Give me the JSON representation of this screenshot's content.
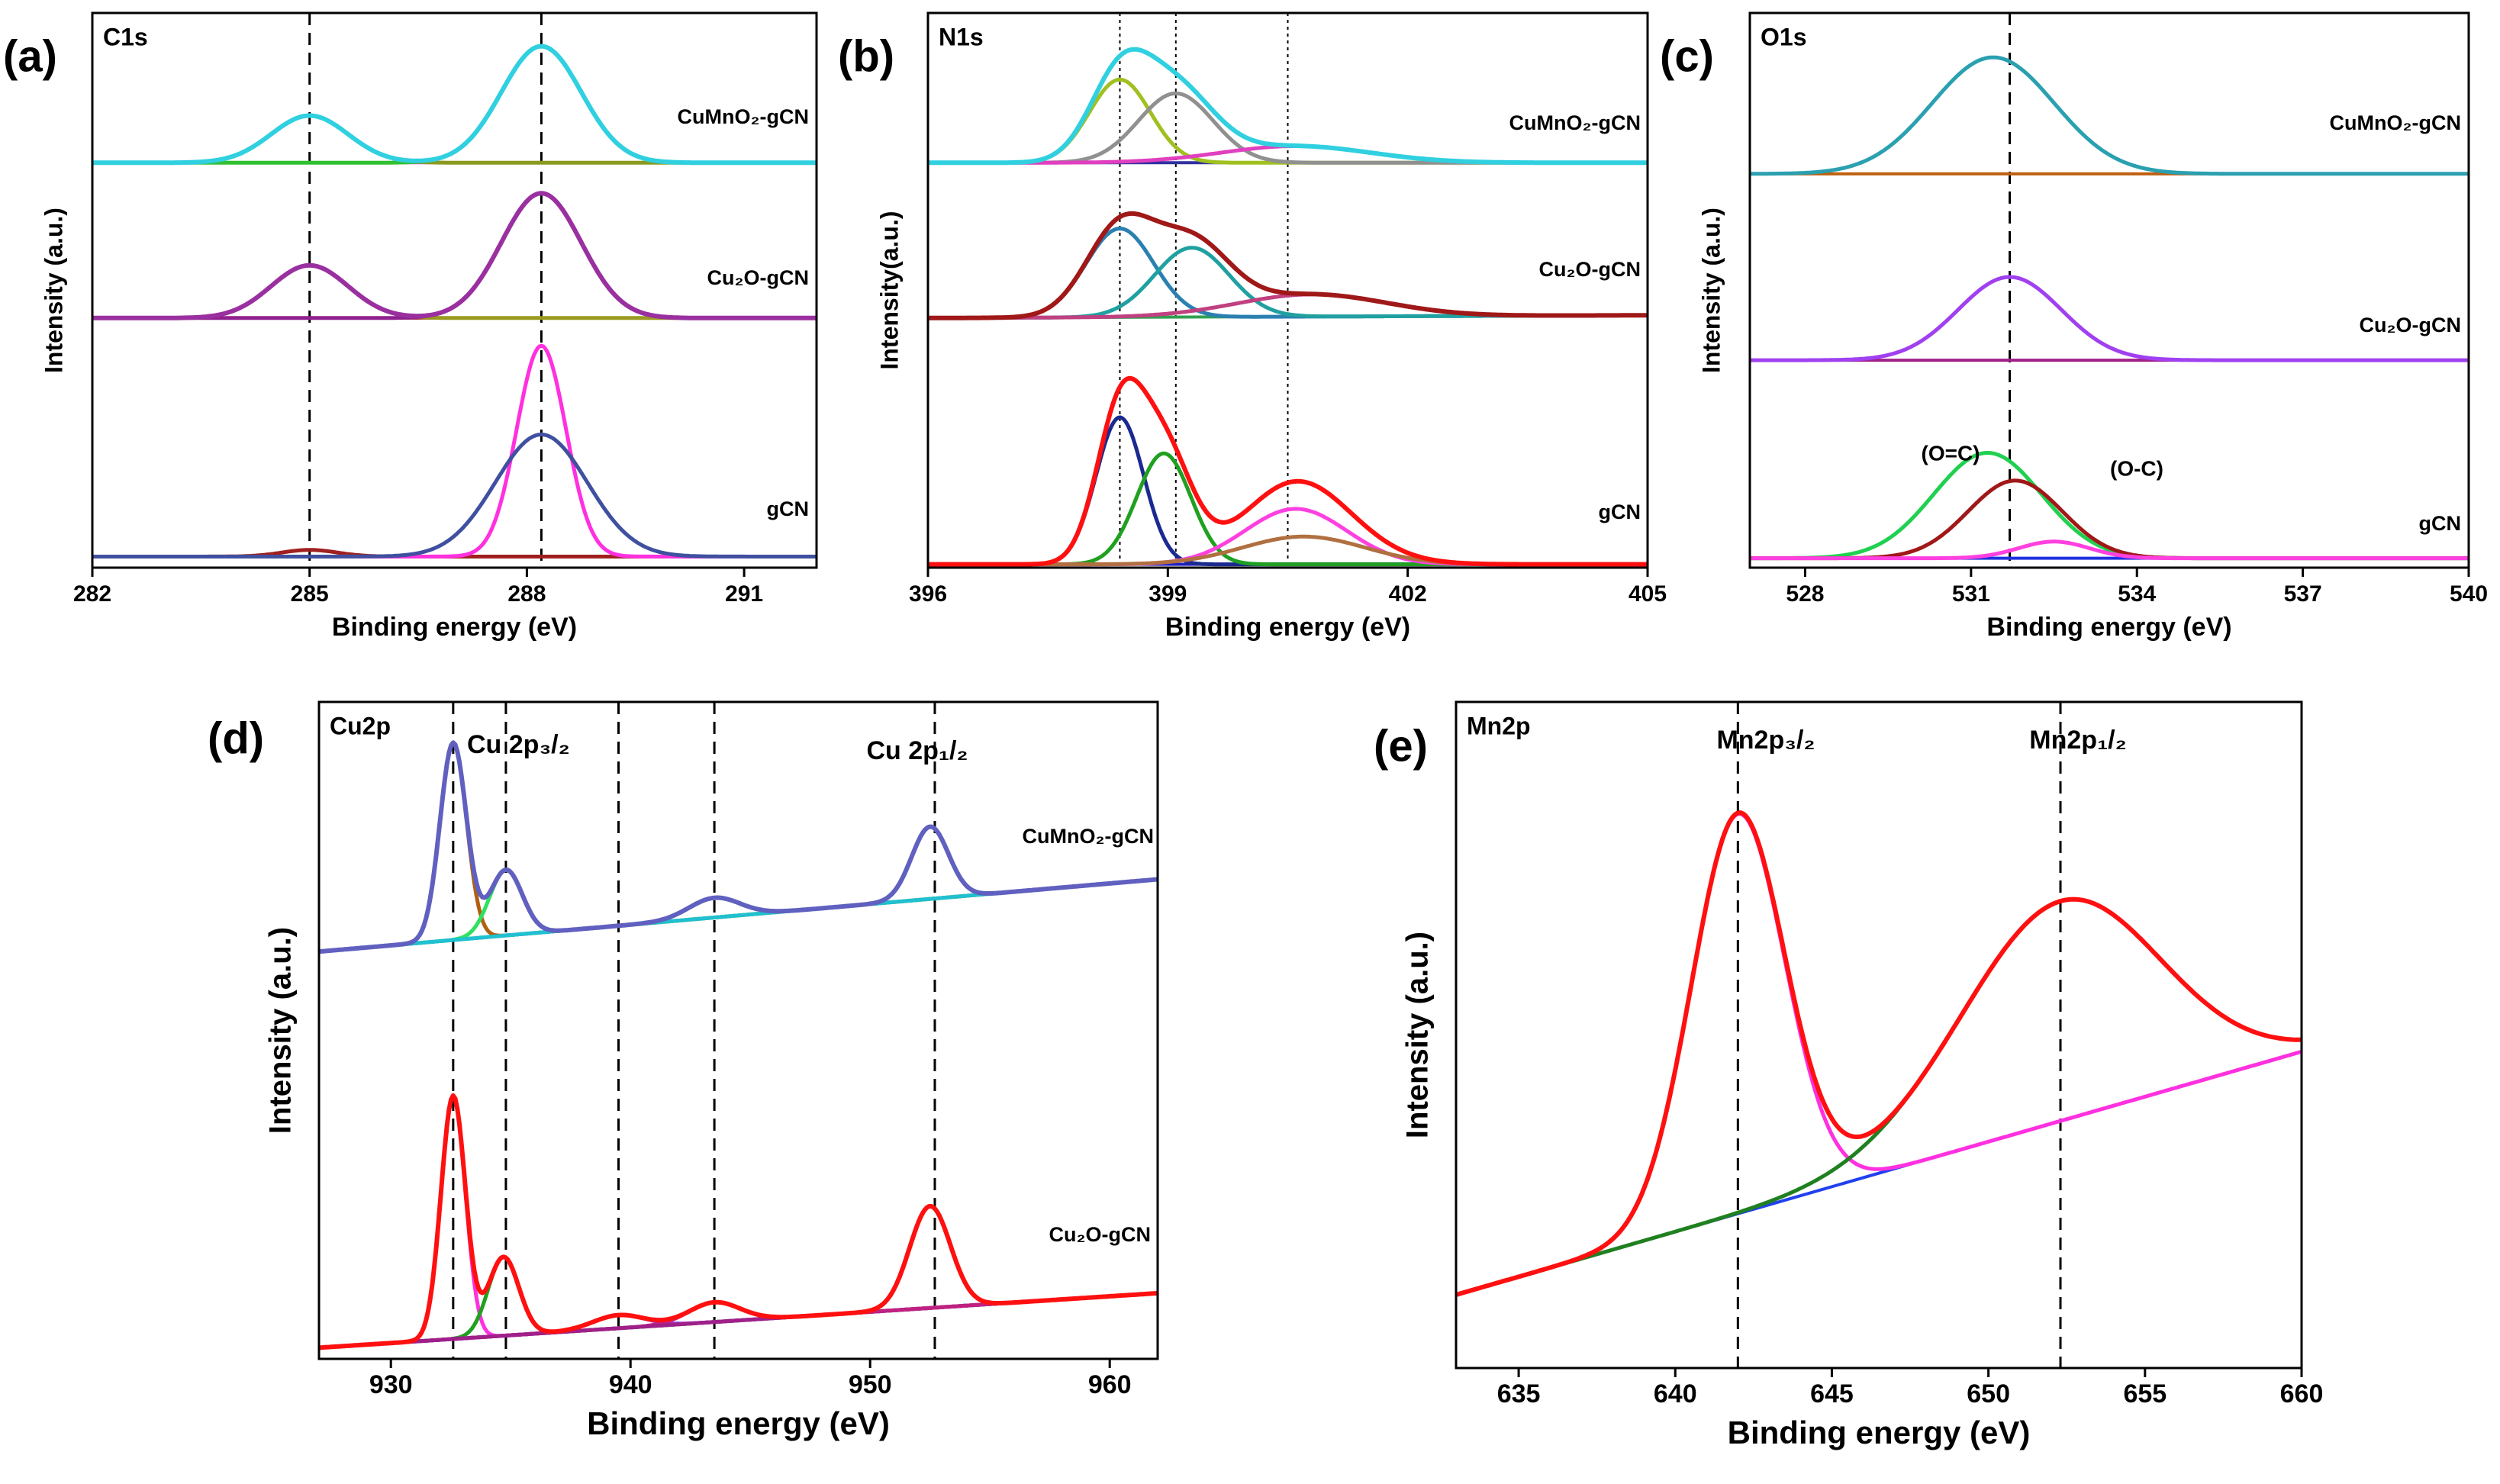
{
  "chart_data": [
    {
      "type": "xps",
      "panel": "(a)",
      "title": "C1s",
      "xlabel": "Binding energy (eV)",
      "ylabel": "Intensity (a.u.)",
      "xlim": [
        282,
        292
      ],
      "xticks": [
        282,
        285,
        288,
        291
      ],
      "ylim": [
        0,
        1
      ],
      "marker_style": "dashed",
      "markers": [
        285.0,
        288.2
      ],
      "stacks": [
        {
          "label": "CuMnO₂-gCN",
          "baseline": [
            0.73,
            0.73
          ],
          "baseline_color": "#e040c0",
          "envelope_color": "#30d0e0",
          "peaks": [
            {
              "center": 285.0,
              "fwhm": 1.25,
              "height": 0.085,
              "color": "#8a9a20"
            },
            {
              "center": 288.2,
              "fwhm": 1.3,
              "height": 0.21,
              "color": "#30c030"
            }
          ]
        },
        {
          "label": "Cu₂O-gCN",
          "baseline": [
            0.45,
            0.45
          ],
          "baseline_color": "#a01020",
          "envelope_color": "#9a30a0",
          "peaks": [
            {
              "center": 285.0,
              "fwhm": 1.25,
              "height": 0.095,
              "color": "#9a9a20"
            },
            {
              "center": 288.2,
              "fwhm": 1.3,
              "height": 0.225,
              "color": "#902090"
            }
          ]
        },
        {
          "label": "gCN",
          "baseline": [
            0.02,
            0.02
          ],
          "baseline_color": "#208020",
          "peaks": [
            {
              "center": 285.0,
              "fwhm": 0.9,
              "height": 0.012,
              "color": "#a02020"
            },
            {
              "center": 288.2,
              "fwhm": 0.8,
              "height": 0.38,
              "color": "#ff30e0"
            },
            {
              "center": 288.2,
              "fwhm": 1.5,
              "height": 0.22,
              "color": "#4050a0"
            }
          ]
        }
      ]
    },
    {
      "type": "xps",
      "panel": "(b)",
      "title": "N1s",
      "xlabel": "Binding energy (eV)",
      "ylabel": "Intensity(a.u.)",
      "xlim": [
        396,
        405
      ],
      "xticks": [
        396,
        399,
        402,
        405
      ],
      "ylim": [
        0,
        1
      ],
      "marker_style": "dotted",
      "markers": [
        398.4,
        399.1,
        400.5
      ],
      "stacks": [
        {
          "label": "CuMnO₂-gCN",
          "baseline": [
            0.73,
            0.73
          ],
          "baseline_color": "#3030a0",
          "envelope_color": "#30d0e0",
          "peaks": [
            {
              "center": 398.4,
              "fwhm": 0.9,
              "height": 0.15,
              "color": "#a0c020"
            },
            {
              "center": 399.1,
              "fwhm": 1.1,
              "height": 0.125,
              "color": "#909090"
            },
            {
              "center": 400.6,
              "fwhm": 2.2,
              "height": 0.03,
              "color": "#e040c0"
            }
          ]
        },
        {
          "label": "Cu₂O-gCN",
          "baseline": [
            0.45,
            0.455
          ],
          "baseline_color": "#30a050",
          "envelope_color": "#a01818",
          "peaks": [
            {
              "center": 398.4,
              "fwhm": 1.0,
              "height": 0.16,
              "color": "#2a80b0"
            },
            {
              "center": 399.3,
              "fwhm": 1.1,
              "height": 0.125,
              "color": "#20a0a0"
            },
            {
              "center": 400.8,
              "fwhm": 2.2,
              "height": 0.04,
              "color": "#c04080"
            }
          ]
        },
        {
          "label": "gCN",
          "baseline": [
            0.006,
            0.006
          ],
          "baseline_color": "#2020c0",
          "envelope_color": "#ff1010",
          "peaks": [
            {
              "center": 398.4,
              "fwhm": 0.7,
              "height": 0.265,
              "color": "#1a2a90"
            },
            {
              "center": 398.95,
              "fwhm": 0.8,
              "height": 0.2,
              "color": "#20a020"
            },
            {
              "center": 400.6,
              "fwhm": 1.5,
              "height": 0.1,
              "color": "#ff40e0"
            },
            {
              "center": 400.7,
              "fwhm": 1.8,
              "height": 0.05,
              "color": "#b07040"
            }
          ]
        }
      ]
    },
    {
      "type": "xps",
      "panel": "(c)",
      "title": "O1s",
      "xlabel": "Binding energy (eV)",
      "ylabel": "Intensity (a.u.)",
      "xlim": [
        527,
        540
      ],
      "xticks": [
        528,
        531,
        534,
        537,
        540
      ],
      "ylim": [
        0,
        1
      ],
      "marker_style": "dashed",
      "markers": [
        531.7
      ],
      "annotations": [
        "(O=C)",
        "(O-C)"
      ],
      "stacks": [
        {
          "label": "CuMnO₂-gCN",
          "baseline": [
            0.71,
            0.71
          ],
          "baseline_color": "#c06010",
          "peaks": [
            {
              "center": 531.4,
              "fwhm": 2.6,
              "height": 0.21,
              "color": "#2aa0b0"
            }
          ]
        },
        {
          "label": "Cu₂O-gCN",
          "baseline": [
            0.374,
            0.374
          ],
          "baseline_color": "#a0208a",
          "peaks": [
            {
              "center": 531.7,
              "fwhm": 2.2,
              "height": 0.15,
              "color": "#a040f0"
            }
          ]
        },
        {
          "label": "gCN",
          "baseline": [
            0.017,
            0.017
          ],
          "baseline_color": "#2030e0",
          "peaks": [
            {
              "center": 531.3,
              "fwhm": 2.3,
              "height": 0.19,
              "color": "#20d050"
            },
            {
              "center": 531.8,
              "fwhm": 2.0,
              "height": 0.14,
              "color": "#a01818"
            },
            {
              "center": 532.5,
              "fwhm": 1.5,
              "height": 0.03,
              "color": "#ff40e0"
            }
          ]
        }
      ]
    },
    {
      "type": "xps",
      "panel": "(d)",
      "title": "Cu2p",
      "xlabel": "Binding energy (eV)",
      "ylabel": "Intensity (a.u.)",
      "xlim": [
        927,
        962
      ],
      "xticks": [
        930,
        940,
        950,
        960
      ],
      "ylim": [
        0,
        1
      ],
      "marker_style": "dashed",
      "markers": [
        932.6,
        934.8,
        939.5,
        943.5,
        952.7
      ],
      "annotations": [
        "Cu 2p₃/₂",
        "Cu 2p₁/₂"
      ],
      "stacks": [
        {
          "label": "CuMnO₂-gCN",
          "baseline": [
            0.62,
            0.73
          ],
          "baseline_color": "#4040b0",
          "envelope_color": "#6060c0",
          "peaks": [
            {
              "center": 932.6,
              "fwhm": 1.3,
              "height": 0.3,
              "color": "#b06010"
            },
            {
              "center": 934.8,
              "fwhm": 1.6,
              "height": 0.1,
              "color": "#30e060"
            },
            {
              "center": 943.5,
              "fwhm": 2.5,
              "height": 0.03,
              "color": "#20c0d0"
            },
            {
              "center": 952.5,
              "fwhm": 1.8,
              "height": 0.11,
              "color": "#20c0d0"
            }
          ]
        },
        {
          "label": "Cu₂O-gCN",
          "baseline": [
            0.017,
            0.1
          ],
          "baseline_color": "#a040e0",
          "envelope_color": "#ff1010",
          "peaks": [
            {
              "center": 932.6,
              "fwhm": 1.2,
              "height": 0.37,
              "color": "#ff30e0"
            },
            {
              "center": 934.7,
              "fwhm": 1.5,
              "height": 0.12,
              "color": "#20a020"
            },
            {
              "center": 939.5,
              "fwhm": 2.5,
              "height": 0.02,
              "color": "#a040e0"
            },
            {
              "center": 943.5,
              "fwhm": 2.5,
              "height": 0.03,
              "color": "#c02080"
            },
            {
              "center": 952.5,
              "fwhm": 2.0,
              "height": 0.155,
              "color": "#a0208a"
            }
          ]
        }
      ]
    },
    {
      "type": "xps",
      "panel": "(e)",
      "title": "Mn2p",
      "xlabel": "Binding energy (eV)",
      "ylabel": "Intensity (a.u.)",
      "xlim": [
        633,
        660
      ],
      "xticks": [
        635,
        640,
        645,
        650,
        655,
        660
      ],
      "ylim": [
        0,
        1
      ],
      "marker_style": "dashed",
      "markers": [
        642.0,
        652.3
      ],
      "annotations": [
        "Mn2p₃/₂",
        "Mn2p₁/₂"
      ],
      "stacks": [
        {
          "baseline": [
            0.11,
            0.475
          ],
          "baseline_color": "#2040f0",
          "envelope_color": "#ff1010",
          "peaks": [
            {
              "center": 642.0,
              "fwhm": 3.5,
              "height": 0.6,
              "color": "#ff30e0"
            },
            {
              "center": 652.3,
              "fwhm": 7.5,
              "height": 0.33,
              "color": "#208020"
            }
          ]
        }
      ]
    }
  ]
}
